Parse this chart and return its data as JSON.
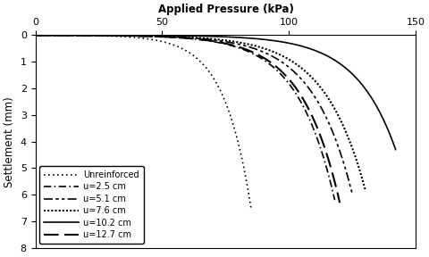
{
  "title": "Applied Pressure (kPa)",
  "ylabel": "Settlement (mm)",
  "xlim": [
    0,
    150
  ],
  "ylim": [
    8,
    0
  ],
  "xticks": [
    0,
    50,
    100,
    150
  ],
  "yticks": [
    0,
    1,
    2,
    3,
    4,
    5,
    6,
    7,
    8
  ],
  "curves": [
    {
      "label": "Unreinforced",
      "p_ult": 85,
      "s_ult": 6.5,
      "sharpness": 8.0,
      "color": "black",
      "linestyle": "dotted",
      "linewidth": 1.2
    },
    {
      "label": "u=2.5 cm",
      "p_ult": 118,
      "s_ult": 6.2,
      "sharpness": 8.0,
      "color": "black",
      "linestyle": "dashdot_sparse",
      "linewidth": 1.2
    },
    {
      "label": "u=5.1 cm",
      "p_ult": 125,
      "s_ult": 6.0,
      "sharpness": 8.0,
      "color": "black",
      "linestyle": "longdash",
      "linewidth": 1.2
    },
    {
      "label": "u=7.6 cm",
      "p_ult": 130,
      "s_ult": 5.8,
      "sharpness": 8.0,
      "color": "black",
      "linestyle": "dense_dot",
      "linewidth": 1.5
    },
    {
      "label": "u=10.2 cm",
      "p_ult": 142,
      "s_ult": 4.3,
      "sharpness": 9.0,
      "color": "black",
      "linestyle": "solid",
      "linewidth": 1.2
    },
    {
      "label": "u=12.7 cm",
      "p_ult": 120,
      "s_ult": 6.3,
      "sharpness": 8.0,
      "color": "black",
      "linestyle": "long_sparse_dash",
      "linewidth": 1.5
    }
  ],
  "background_color": "#ffffff",
  "legend_loc": "lower left",
  "legend_fontsize": 7.0,
  "axis_fontsize": 8.5
}
